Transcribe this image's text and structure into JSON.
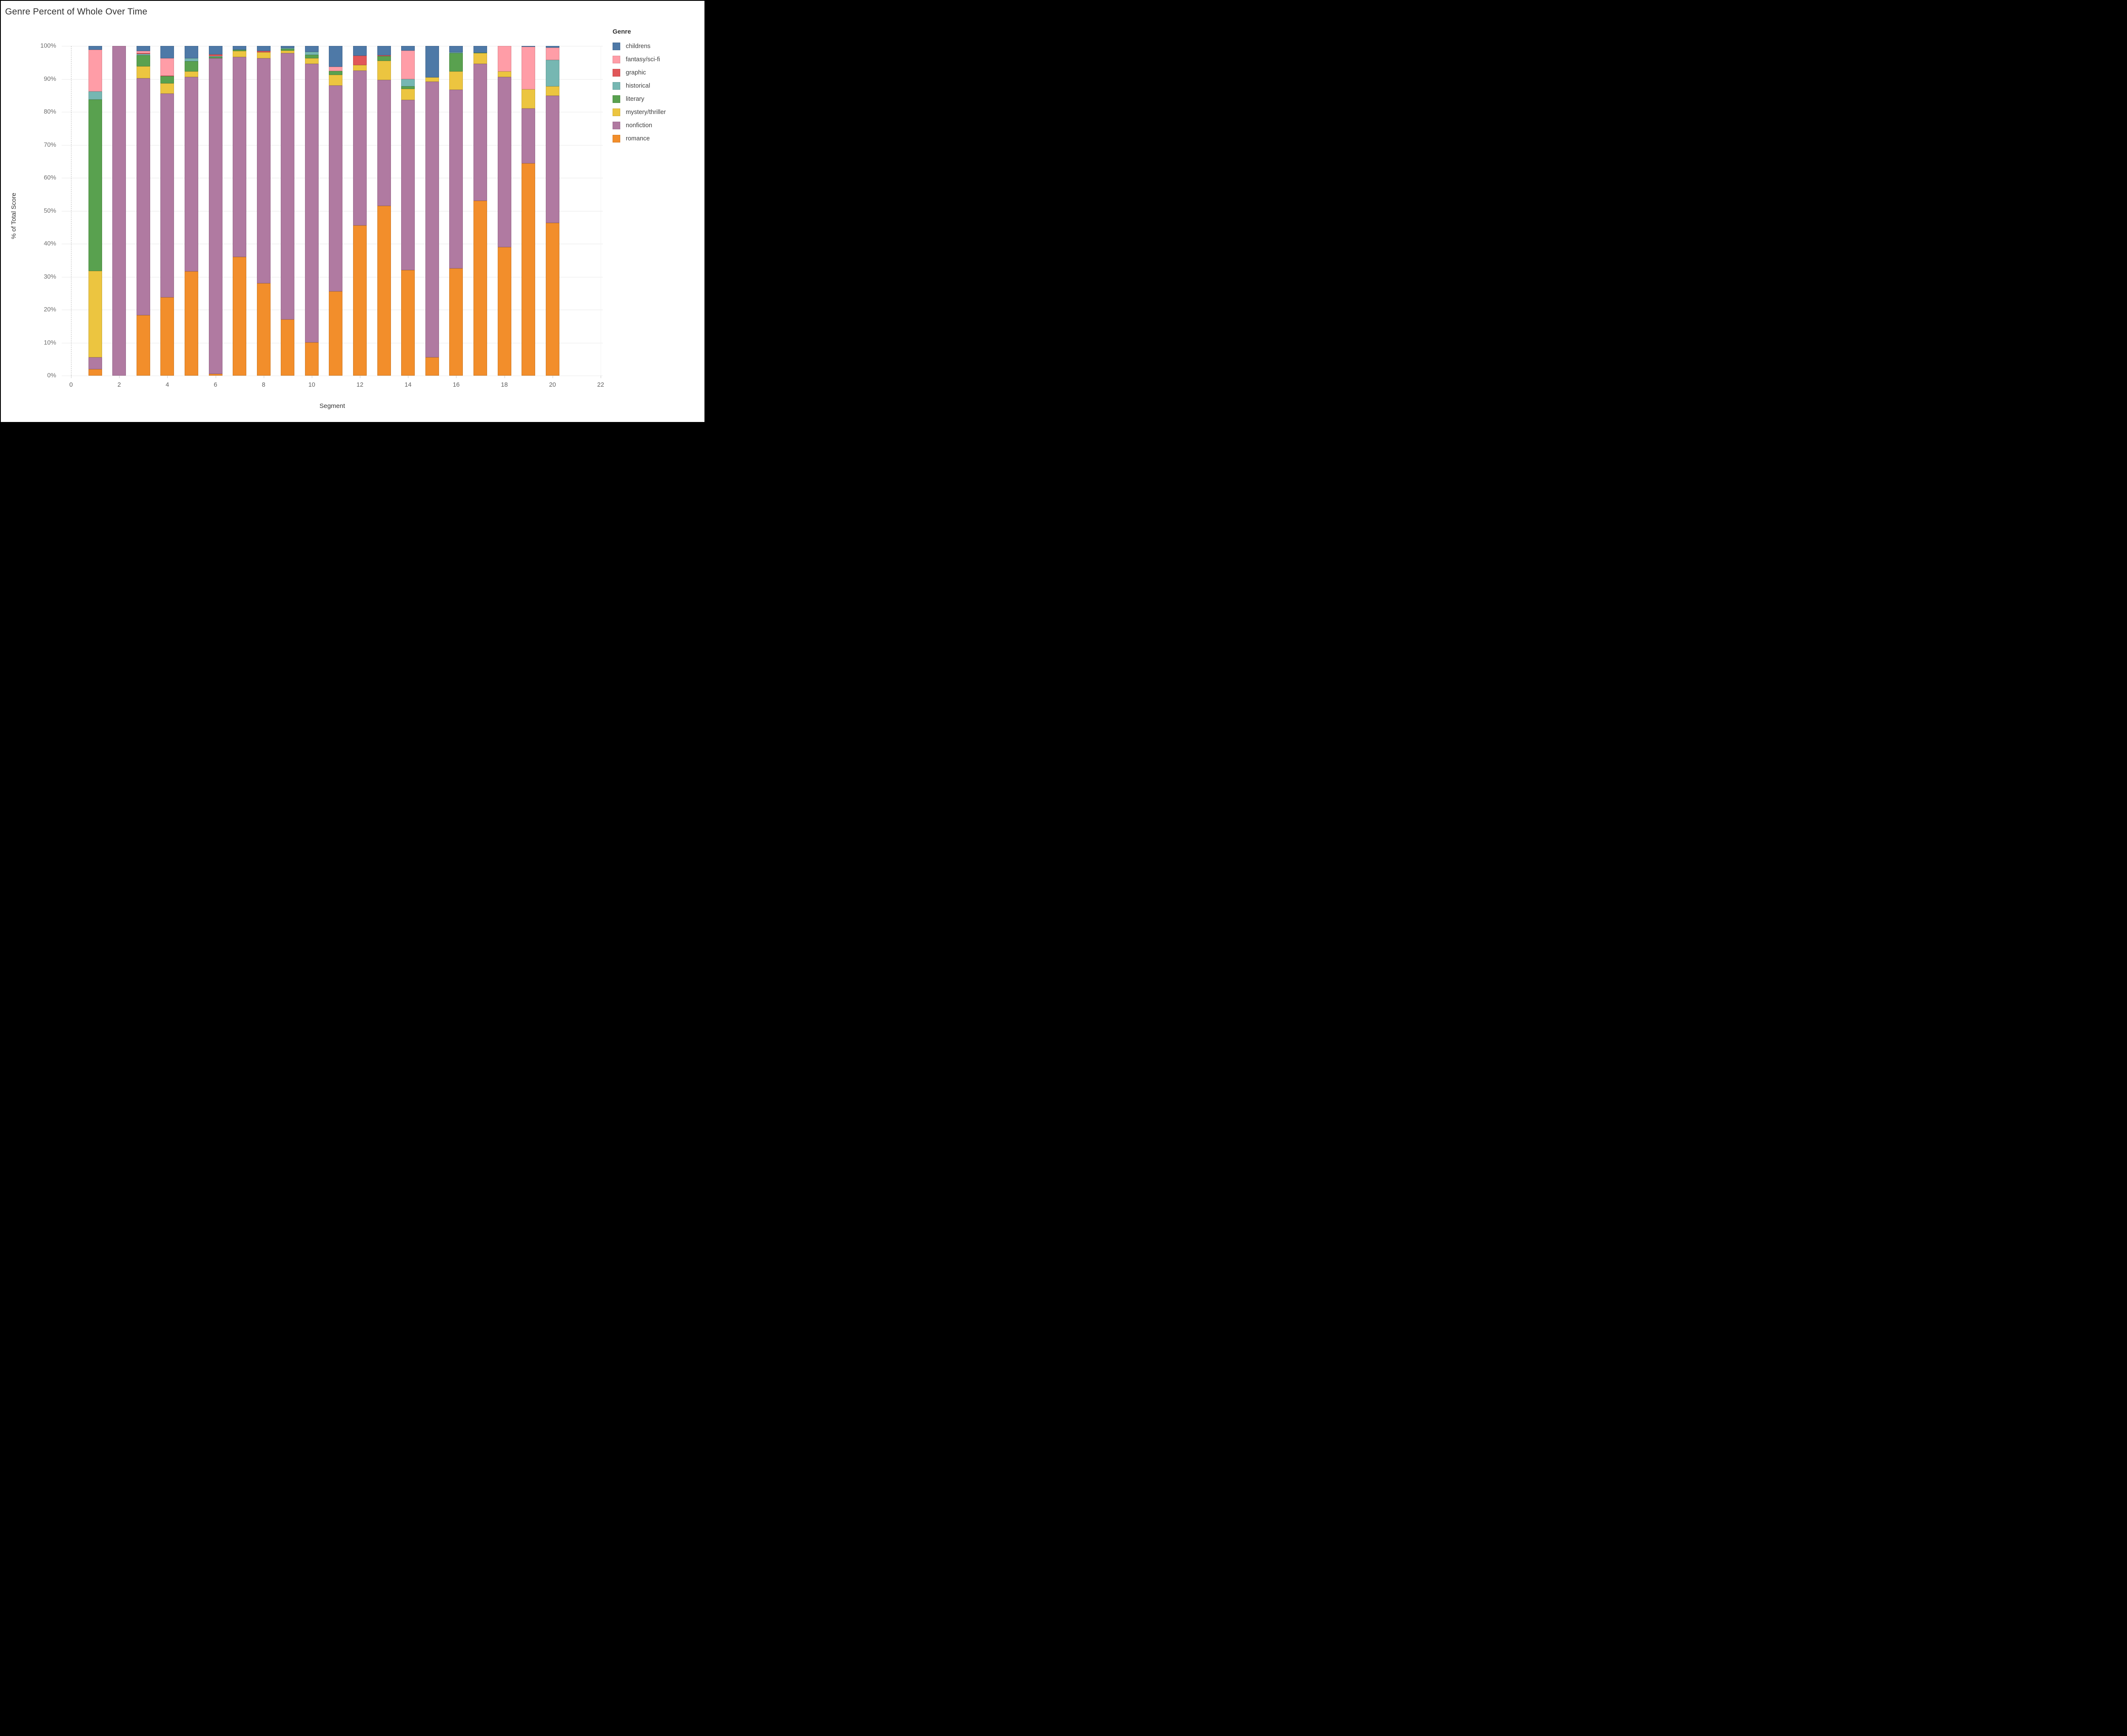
{
  "title": "Genre Percent of Whole Over Time",
  "x_axis": {
    "label": "Segment",
    "ticks": [
      0,
      2,
      4,
      6,
      8,
      10,
      12,
      14,
      16,
      18,
      20,
      22
    ],
    "range": [
      0,
      22
    ]
  },
  "y_axis": {
    "label": "% of Total Score",
    "ticks": [
      "0%",
      "10%",
      "20%",
      "30%",
      "40%",
      "50%",
      "60%",
      "70%",
      "80%",
      "90%",
      "100%"
    ]
  },
  "legend": {
    "title": "Genre",
    "items": [
      {
        "label": "childrens",
        "color": "#4e79a7"
      },
      {
        "label": "fantasy/sci-fi",
        "color": "#ff9da7"
      },
      {
        "label": "graphic",
        "color": "#e15759"
      },
      {
        "label": "historical",
        "color": "#76b7b2"
      },
      {
        "label": "literary",
        "color": "#59a14f"
      },
      {
        "label": "mystery/thriller",
        "color": "#ecc540"
      },
      {
        "label": "nonfiction",
        "color": "#b07aa1"
      },
      {
        "label": "romance",
        "color": "#f28e2b"
      }
    ]
  },
  "chart_data": {
    "type": "bar",
    "subtype": "stacked-percent",
    "title": "Genre Percent of Whole Over Time",
    "xlabel": "Segment",
    "ylabel": "% of Total Score",
    "xlim": [
      0,
      22
    ],
    "ylim": [
      0,
      100
    ],
    "grid": true,
    "legend_position": "right",
    "categories": [
      1,
      2,
      3,
      4,
      5,
      6,
      7,
      8,
      9,
      10,
      11,
      12,
      13,
      14,
      15,
      16,
      17,
      18,
      19,
      20
    ],
    "stack_order_bottom_to_top": [
      "romance",
      "nonfiction",
      "mystery/thriller",
      "literary",
      "historical",
      "graphic",
      "fantasy/sci-fi",
      "childrens"
    ],
    "series": [
      {
        "name": "childrens",
        "color": "#4e79a7",
        "values": [
          1.2,
          0,
          1.5,
          3.7,
          3.8,
          2.6,
          1.1,
          1.6,
          0.6,
          1.75,
          6.35,
          3.0,
          2.85,
          1.4,
          9.6,
          1.9,
          2.0,
          0,
          0.2,
          0.5
        ]
      },
      {
        "name": "fantasy/sci-fi",
        "color": "#ff9da7",
        "values": [
          12.6,
          0,
          0.7,
          5.3,
          0,
          0,
          0,
          0,
          0,
          0,
          1.25,
          0,
          0,
          8.7,
          0,
          0,
          0,
          7.8,
          13.0,
          3.8
        ]
      },
      {
        "name": "graphic",
        "color": "#e15759",
        "values": [
          0,
          0,
          0.25,
          0.2,
          0,
          0.45,
          0,
          0.3,
          0,
          0,
          0,
          2.8,
          0.25,
          0,
          0,
          0,
          0,
          0,
          0,
          0
        ]
      },
      {
        "name": "historical",
        "color": "#76b7b2",
        "values": [
          2.5,
          0,
          0.35,
          0,
          0.8,
          0.25,
          0,
          0,
          0.25,
          0.85,
          0,
          0,
          0,
          2.2,
          0,
          0.25,
          0,
          0,
          0,
          7.9
        ]
      },
      {
        "name": "literary",
        "color": "#59a14f",
        "values": [
          52.0,
          0,
          3.4,
          2.2,
          3.1,
          0.4,
          0.5,
          0,
          0.55,
          1.15,
          1.15,
          0,
          1.4,
          0.75,
          0,
          5.6,
          0.2,
          0,
          0,
          0
        ]
      },
      {
        "name": "mystery/thriller",
        "color": "#ecc540",
        "values": [
          26.1,
          0,
          3.6,
          3.1,
          1.7,
          0,
          1.8,
          1.8,
          0.8,
          1.6,
          3.25,
          1.65,
          5.8,
          3.3,
          1.3,
          5.6,
          3.2,
          1.6,
          5.8,
          2.9
        ]
      },
      {
        "name": "nonfiction",
        "color": "#b07aa1",
        "values": [
          3.7,
          100,
          71.9,
          61.7,
          59.0,
          95.8,
          60.6,
          68.3,
          80.8,
          84.5,
          62.5,
          47.05,
          38.2,
          51.65,
          83.6,
          54.15,
          41.6,
          51.6,
          16.6,
          38.6
        ]
      },
      {
        "name": "romance",
        "color": "#f28e2b",
        "values": [
          1.9,
          0,
          18.3,
          23.8,
          31.6,
          0.5,
          36.0,
          28.0,
          17.0,
          10.1,
          25.5,
          45.5,
          51.5,
          32.0,
          5.5,
          32.5,
          53.0,
          39.0,
          64.4,
          46.3
        ]
      }
    ]
  }
}
